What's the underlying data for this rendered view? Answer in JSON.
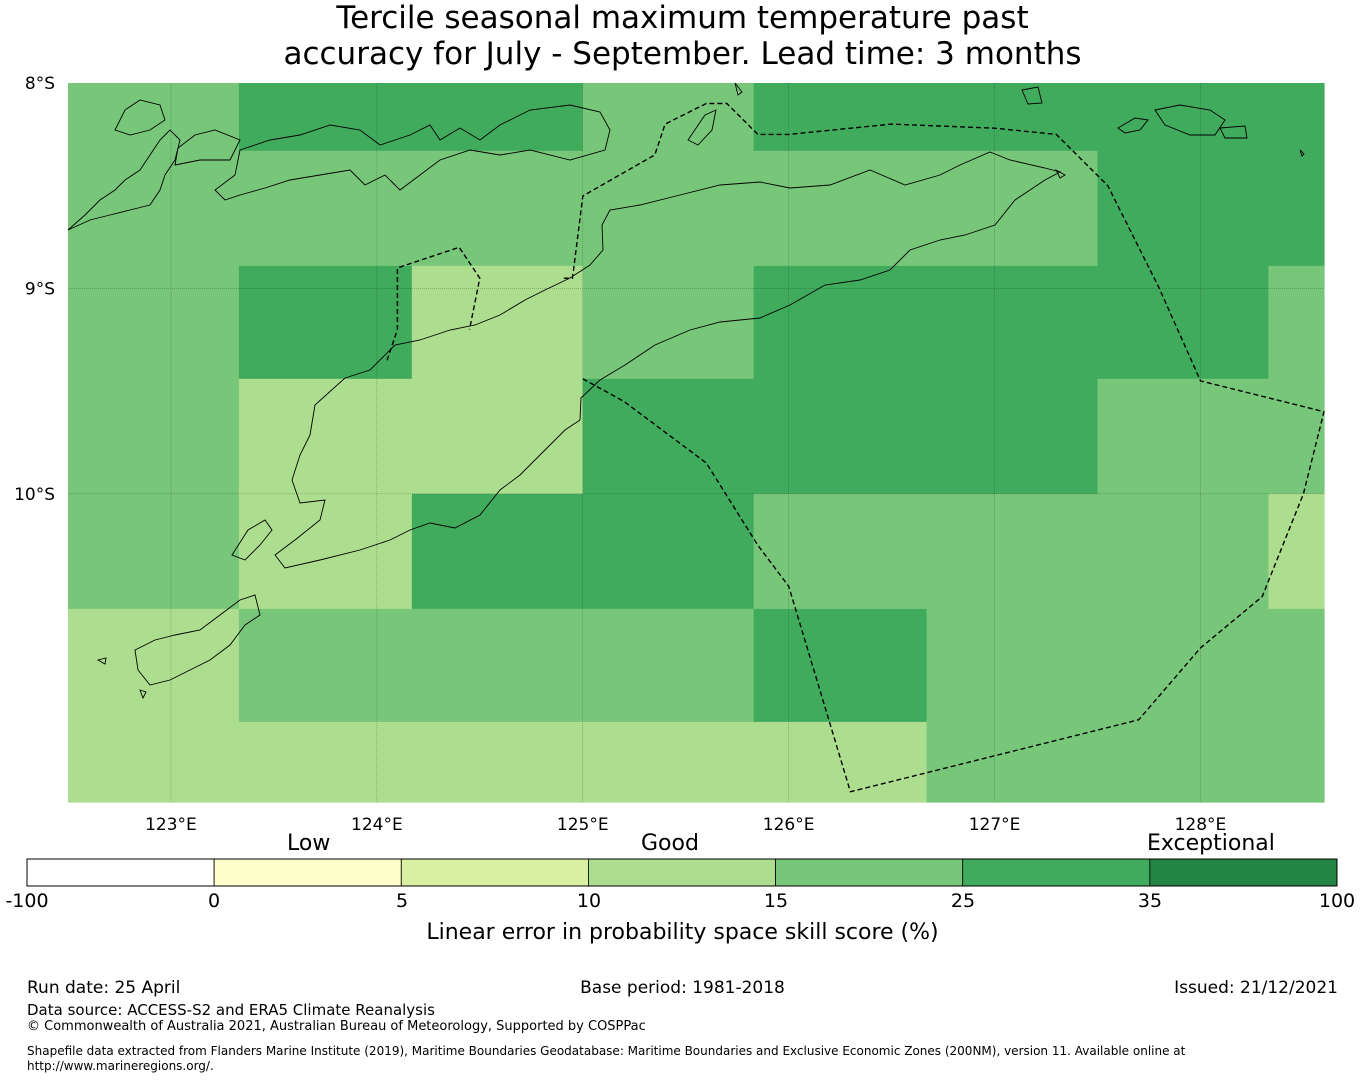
{
  "title": {
    "line1": "Tercile seasonal maximum temperature past",
    "line2": "accuracy for July - September. Lead time: 3 months"
  },
  "map": {
    "lat_labels": [
      "8°S",
      "9°S",
      "10°S"
    ],
    "lon_labels": [
      "123°E",
      "124°E",
      "125°E",
      "126°E",
      "127°E",
      "128°E"
    ],
    "lon_range": [
      122.5,
      128.6
    ],
    "lat_range": [
      -8.0,
      -11.5
    ],
    "grid_cells": [
      {
        "lon": [
          122.5,
          123.33
        ],
        "lat": [
          -8.0,
          -8.33
        ],
        "category": "15-25"
      },
      {
        "lon": [
          123.33,
          125.0
        ],
        "lat": [
          -8.0,
          -8.33
        ],
        "category": "25-35"
      },
      {
        "lon": [
          125.0,
          125.83
        ],
        "lat": [
          -8.0,
          -8.33
        ],
        "category": "15-25"
      },
      {
        "lon": [
          125.83,
          128.6
        ],
        "lat": [
          -8.0,
          -8.33
        ],
        "category": "25-35"
      },
      {
        "lon": [
          122.5,
          127.5
        ],
        "lat": [
          -8.33,
          -8.89
        ],
        "category": "15-25"
      },
      {
        "lon": [
          127.5,
          128.6
        ],
        "lat": [
          -8.33,
          -8.89
        ],
        "category": "25-35"
      },
      {
        "lon": [
          122.5,
          123.33
        ],
        "lat": [
          -8.89,
          -9.44
        ],
        "category": "15-25"
      },
      {
        "lon": [
          123.33,
          124.17
        ],
        "lat": [
          -8.89,
          -9.44
        ],
        "category": "25-35"
      },
      {
        "lon": [
          124.17,
          125.0
        ],
        "lat": [
          -8.89,
          -9.44
        ],
        "category": "10-15"
      },
      {
        "lon": [
          125.0,
          125.83
        ],
        "lat": [
          -8.89,
          -9.44
        ],
        "category": "15-25"
      },
      {
        "lon": [
          125.83,
          128.33
        ],
        "lat": [
          -8.89,
          -9.44
        ],
        "category": "25-35"
      },
      {
        "lon": [
          128.33,
          128.6
        ],
        "lat": [
          -8.89,
          -9.44
        ],
        "category": "15-25"
      },
      {
        "lon": [
          122.5,
          123.33
        ],
        "lat": [
          -9.44,
          -10.0
        ],
        "category": "15-25"
      },
      {
        "lon": [
          123.33,
          125.0
        ],
        "lat": [
          -9.44,
          -10.0
        ],
        "category": "10-15"
      },
      {
        "lon": [
          125.0,
          127.5
        ],
        "lat": [
          -9.44,
          -10.0
        ],
        "category": "25-35"
      },
      {
        "lon": [
          127.5,
          128.6
        ],
        "lat": [
          -9.44,
          -10.0
        ],
        "category": "15-25"
      },
      {
        "lon": [
          122.5,
          123.33
        ],
        "lat": [
          -10.0,
          -10.56
        ],
        "category": "15-25"
      },
      {
        "lon": [
          123.33,
          124.17
        ],
        "lat": [
          -10.0,
          -10.56
        ],
        "category": "10-15"
      },
      {
        "lon": [
          124.17,
          125.83
        ],
        "lat": [
          -10.0,
          -10.56
        ],
        "category": "25-35"
      },
      {
        "lon": [
          125.83,
          128.33
        ],
        "lat": [
          -10.0,
          -10.56
        ],
        "category": "15-25"
      },
      {
        "lon": [
          128.33,
          128.6
        ],
        "lat": [
          -10.0,
          -10.56
        ],
        "category": "10-15"
      },
      {
        "lon": [
          122.5,
          123.33
        ],
        "lat": [
          -10.56,
          -11.11
        ],
        "category": "10-15"
      },
      {
        "lon": [
          123.33,
          125.83
        ],
        "lat": [
          -10.56,
          -11.11
        ],
        "category": "15-25"
      },
      {
        "lon": [
          125.83,
          126.67
        ],
        "lat": [
          -10.56,
          -11.11
        ],
        "category": "25-35"
      },
      {
        "lon": [
          126.67,
          128.6
        ],
        "lat": [
          -10.56,
          -11.11
        ],
        "category": "15-25"
      },
      {
        "lon": [
          122.5,
          126.67
        ],
        "lat": [
          -11.11,
          -11.5
        ],
        "category": "10-15"
      },
      {
        "lon": [
          126.67,
          128.6
        ],
        "lat": [
          -11.11,
          -11.5
        ],
        "category": "15-25"
      }
    ],
    "eez_boundary": [
      [
        125.0,
        -9.44
      ],
      [
        125.2,
        -9.55
      ],
      [
        125.6,
        -9.85
      ],
      [
        125.85,
        -10.25
      ],
      [
        126.0,
        -10.45
      ],
      [
        126.3,
        -11.45
      ],
      [
        126.5,
        -11.4
      ],
      [
        127.7,
        -11.1
      ],
      [
        128.0,
        -10.75
      ],
      [
        128.3,
        -10.5
      ],
      [
        128.5,
        -10.0
      ],
      [
        128.6,
        -9.6
      ],
      [
        128.0,
        -9.45
      ],
      [
        127.8,
        -9.0
      ],
      [
        127.55,
        -8.5
      ],
      [
        127.3,
        -8.25
      ],
      [
        127.0,
        -8.22
      ],
      [
        126.5,
        -8.2
      ],
      [
        126.0,
        -8.25
      ],
      [
        125.85,
        -8.25
      ],
      [
        125.7,
        -8.1
      ],
      [
        125.6,
        -8.1
      ],
      [
        125.4,
        -8.2
      ],
      [
        125.35,
        -8.35
      ],
      [
        125.0,
        -8.55
      ],
      [
        124.95,
        -8.95
      ],
      [
        124.9,
        -8.95
      ]
    ],
    "oecusse_boundary": [
      [
        124.05,
        -9.35
      ],
      [
        124.1,
        -9.2
      ],
      [
        124.1,
        -8.9
      ],
      [
        124.4,
        -8.8
      ],
      [
        124.5,
        -8.95
      ],
      [
        124.45,
        -9.2
      ]
    ]
  },
  "colorbar": {
    "category_labels": [
      "Low",
      "Good",
      "Exceptional"
    ],
    "boundaries": [
      -100,
      0,
      5,
      10,
      15,
      25,
      35,
      100
    ],
    "tick_labels": [
      "-100",
      "0",
      "5",
      "10",
      "15",
      "25",
      "35",
      "100"
    ],
    "colors": [
      "#ffffff",
      "#ffffcc",
      "#d9f0a3",
      "#addd8e",
      "#78c679",
      "#41ab5d",
      "#238443"
    ],
    "label": "Linear error in probability space skill score (%)"
  },
  "category_colors": {
    "10-15": "#addd8e",
    "15-25": "#78c679",
    "25-35": "#41ab5d"
  },
  "footer": {
    "run_date": "Run date: 25 April",
    "base_period": "Base period: 1981-2018",
    "issued": "Issued: 21/12/2021",
    "data_source": "Data source: ACCESS-S2 and ERA5 Climate Reanalysis",
    "copyright": "© Commonwealth of Australia 2021, Australian Bureau of Meteorology, Supported by COSPPac",
    "shapefile_line1": "Shapefile data extracted from Flanders Marine Institute (2019), Maritime Boundaries Geodatabase: Maritime Boundaries and Exclusive Economic Zones (200NM), version 11. Available online at",
    "shapefile_line2": "http://www.marineregions.org/."
  }
}
